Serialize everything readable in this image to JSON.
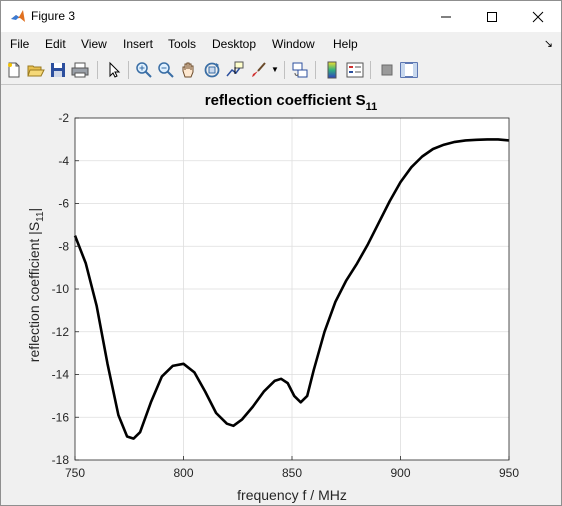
{
  "window": {
    "title": "Figure 3",
    "menu": [
      "File",
      "Edit",
      "View",
      "Insert",
      "Tools",
      "Desktop",
      "Window",
      "Help"
    ]
  },
  "toolbar": {
    "tools": [
      "new-figure",
      "open-file",
      "save",
      "print",
      "select-arrow",
      "zoom-in",
      "zoom-out",
      "pan",
      "rotate-3d",
      "data-cursor",
      "brush",
      "link-plot",
      "colorbar",
      "legend",
      "hide-plot-tools",
      "show-plot-tools"
    ]
  },
  "chart_data": {
    "type": "line",
    "title": "reflection coefficient S",
    "title_subscript": "11",
    "xlabel": "frequency f / MHz",
    "ylabel": "reflection coefficient |S",
    "ylabel_subscript": "11",
    "ylabel_suffix": "|",
    "xlim": [
      750,
      950
    ],
    "ylim": [
      -18,
      -2
    ],
    "xticks": [
      750,
      800,
      850,
      900,
      950
    ],
    "yticks": [
      -18,
      -16,
      -14,
      -12,
      -10,
      -8,
      -6,
      -4,
      -2
    ],
    "grid": true,
    "series": [
      {
        "color": "#000000",
        "x": [
          750,
          755,
          760,
          765,
          770,
          774,
          777,
          780,
          785,
          790,
          795,
          800,
          805,
          810,
          815,
          820,
          823,
          827,
          832,
          837,
          842,
          845,
          848,
          851,
          854,
          857,
          860,
          865,
          870,
          875,
          880,
          885,
          890,
          895,
          900,
          905,
          910,
          915,
          920,
          925,
          930,
          935,
          940,
          945,
          950
        ],
        "y": [
          -7.5,
          -8.8,
          -10.8,
          -13.5,
          -15.9,
          -16.9,
          -17.0,
          -16.7,
          -15.3,
          -14.1,
          -13.6,
          -13.5,
          -13.9,
          -14.8,
          -15.8,
          -16.3,
          -16.4,
          -16.1,
          -15.5,
          -14.8,
          -14.3,
          -14.2,
          -14.4,
          -15.0,
          -15.3,
          -15.0,
          -13.8,
          -12.0,
          -10.6,
          -9.6,
          -8.8,
          -7.9,
          -6.9,
          -5.9,
          -5.0,
          -4.3,
          -3.8,
          -3.45,
          -3.25,
          -3.12,
          -3.05,
          -3.02,
          -3.0,
          -3.0,
          -3.05
        ]
      }
    ]
  }
}
